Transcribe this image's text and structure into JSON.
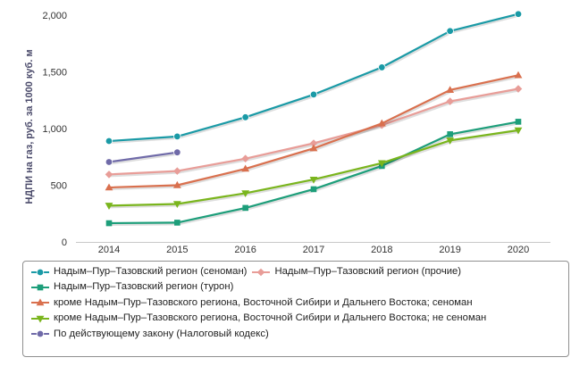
{
  "chart_data": {
    "type": "line",
    "ylabel": "НДПИ на газ, руб. за 1000 куб. м",
    "xlabel": "",
    "x": [
      "2014",
      "2015",
      "2016",
      "2017",
      "2018",
      "2019",
      "2020"
    ],
    "ylim": [
      0,
      2000
    ],
    "yticks": [
      "0",
      "500",
      "1,000",
      "1,500",
      "2,000"
    ],
    "ytick_values": [
      0,
      500,
      1000,
      1500,
      2000
    ],
    "grid": false,
    "legend_position": "bottom",
    "series": [
      {
        "name": "Надым–Пур–Тазовский регион (сеноман)",
        "color": "#1a9aa6",
        "marker": "circle",
        "values": [
          890,
          930,
          1100,
          1300,
          1540,
          1860,
          2010
        ]
      },
      {
        "name": "Надым–Пур–Тазовский регион (прочие)",
        "color": "#e89d98",
        "marker": "diamond",
        "values": [
          595,
          625,
          735,
          870,
          1030,
          1240,
          1350
        ]
      },
      {
        "name": "Надым–Пур–Тазовский регион (турон)",
        "color": "#1d9e7a",
        "marker": "square",
        "values": [
          165,
          170,
          300,
          465,
          670,
          950,
          1060
        ]
      },
      {
        "name": "кроме Надым–Пур–Тазовского региона, Восточной Сибири и Дальнего Востока; сеноман",
        "color": "#d9704e",
        "marker": "triangle-up",
        "values": [
          480,
          500,
          645,
          825,
          1045,
          1340,
          1470
        ]
      },
      {
        "name": "кроме Надым–Пур–Тазовского региона, Восточной Сибири и Дальнего Востока; не сеноман",
        "color": "#7ab51d",
        "marker": "triangle-down",
        "values": [
          320,
          335,
          430,
          550,
          695,
          895,
          985
        ]
      },
      {
        "name": "По действующему закону (Налоговый кодекс)",
        "color": "#6f6aa8",
        "marker": "circle",
        "values": [
          705,
          790,
          null,
          null,
          null,
          null,
          null
        ]
      }
    ],
    "legend_rows": [
      [
        0,
        1
      ],
      [
        2
      ],
      [
        3
      ],
      [
        4
      ],
      [
        5
      ]
    ]
  }
}
